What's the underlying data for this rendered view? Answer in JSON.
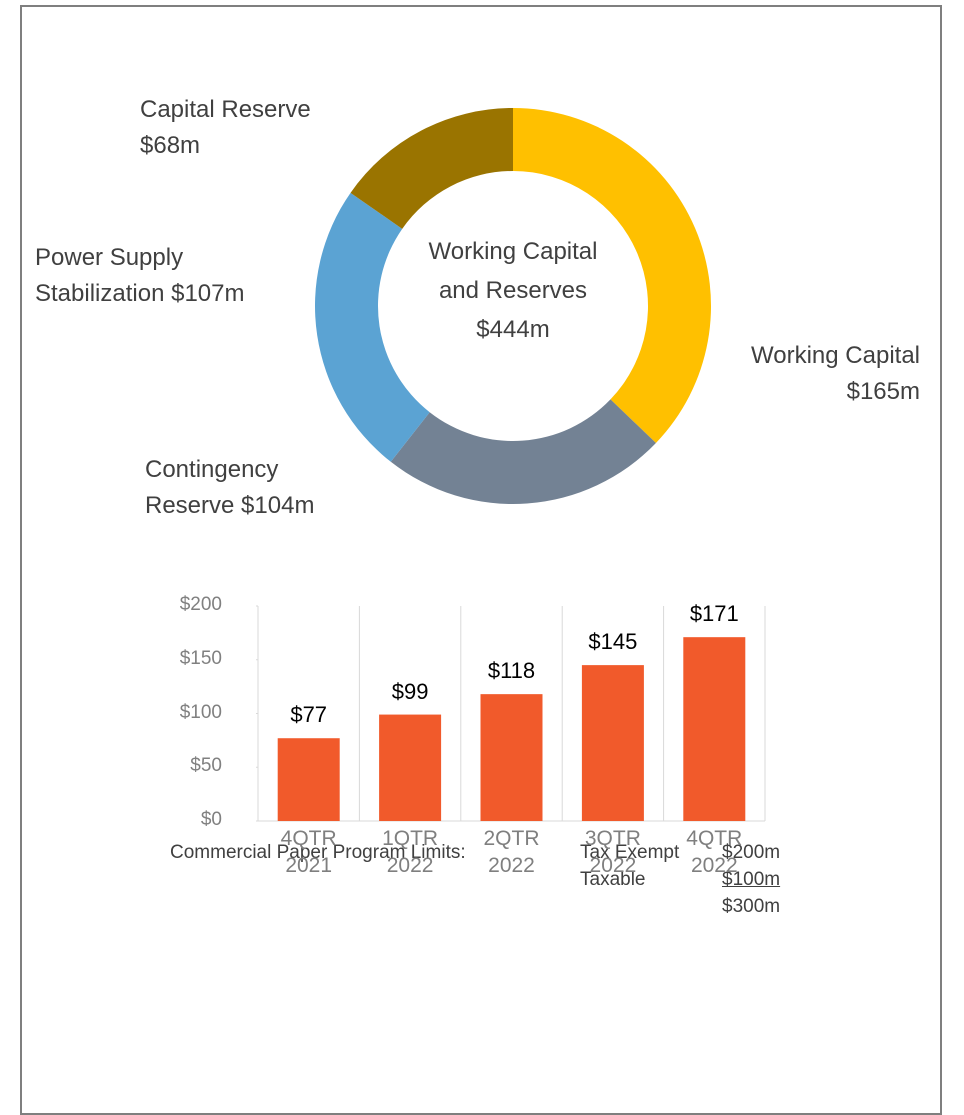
{
  "chart_data": [
    {
      "type": "donut",
      "categories": [
        "Working Capital",
        "Contingency Reserve",
        "Power Supply Stabilization",
        "Capital  Reserve"
      ],
      "values": [
        165,
        104,
        107,
        68
      ],
      "value_labels": [
        "$165m",
        "$104m",
        "$107m",
        "$68m"
      ],
      "colors": [
        "#ffc000",
        "#738294",
        "#5ba3d3",
        "#9a7400"
      ],
      "center_label": "Working Capital and Reserves",
      "total_label": "$444m"
    },
    {
      "type": "bar",
      "categories": [
        "4QTR 2021",
        "1QTR 2022",
        "2QTR 2022",
        "3QTR 2022",
        "4QTR 2022"
      ],
      "values": [
        77,
        99,
        118,
        145,
        171
      ],
      "value_labels": [
        "$77",
        "$99",
        "$118",
        "$145",
        "$171"
      ],
      "color": "#f15a2b",
      "ylim": [
        0,
        200
      ],
      "yticks": [
        {
          "value": 0,
          "label": "$0"
        },
        {
          "value": 50,
          "label": "$50"
        },
        {
          "value": 100,
          "label": "$100"
        },
        {
          "value": 150,
          "label": "$150"
        },
        {
          "value": 200,
          "label": "$200"
        }
      ]
    }
  ],
  "notes": {
    "title": "Commercial Paper Program Limits:",
    "rows": [
      [
        "Tax Exempt",
        "$200m"
      ],
      [
        "Taxable",
        "$100m"
      ]
    ],
    "total": "$300m"
  }
}
